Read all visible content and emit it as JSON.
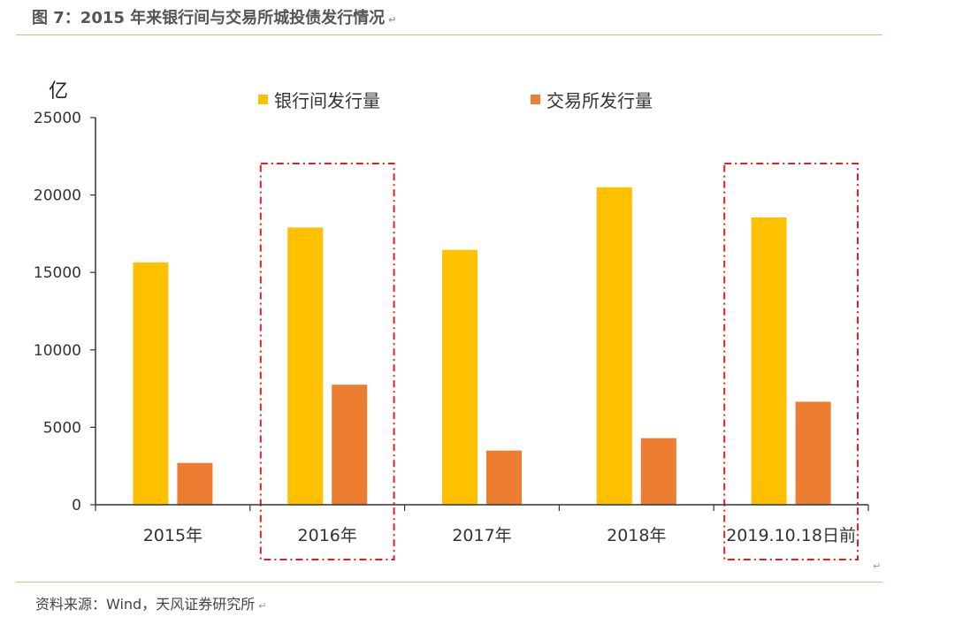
{
  "figure": {
    "title": "图 7：2015 年来银行间与交易所城投债发行情况",
    "source": "资料来源：Wind，天风证券研究所",
    "paragraph_mark": "↵"
  },
  "chart_data": {
    "type": "bar",
    "title": "",
    "xlabel": "",
    "ylabel": "亿",
    "categories": [
      "2015年",
      "2016年",
      "2017年",
      "2018年",
      "2019.10.18日前"
    ],
    "series": [
      {
        "name": "银行间发行量",
        "color": "#FFC000",
        "values": [
          15650,
          17900,
          16450,
          20500,
          18550
        ]
      },
      {
        "name": "交易所发行量",
        "color": "#ED7D31",
        "values": [
          2700,
          7750,
          3500,
          4300,
          6650
        ]
      }
    ],
    "ylim": [
      0,
      25000
    ],
    "yticks": [
      0,
      5000,
      10000,
      15000,
      20000,
      25000
    ],
    "grid": false,
    "legend": "top",
    "highlighted_categories": [
      "2016年",
      "2019.10.18日前"
    ],
    "highlight_color": "#E02020"
  }
}
